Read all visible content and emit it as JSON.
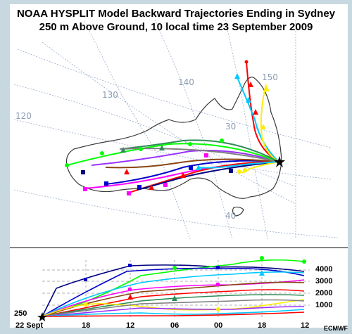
{
  "title": {
    "line1": "NOAA HYSPLIT Model Backward Trajectories Ending in Sydney",
    "line2": "250 m Above Ground, 10 local time 23 September 2009"
  },
  "map": {
    "longitude_labels": [
      "120",
      "130",
      "140",
      "150"
    ],
    "latitude_labels": [
      "30",
      "40"
    ],
    "end_point_label": "Sydney"
  },
  "height_panel": {
    "start_height_label": "250",
    "height_labels": [
      "4000",
      "3000",
      "2000",
      "1000"
    ]
  },
  "time_axis": {
    "labels": [
      "22 Sept",
      "18",
      "12",
      "06",
      "00",
      "18",
      "12"
    ]
  },
  "credit": "ECMWF",
  "colors": {
    "background": "#c8d8e0",
    "coastline": "#3a3a3a",
    "graticule": "#9aaccc",
    "trajectory_palette": [
      "#ff0000",
      "#00c8ff",
      "#ffee00",
      "#2e8b57",
      "#0000cc",
      "#ff00ff",
      "#8b4513",
      "#00ff00",
      "#808080",
      "#000080"
    ]
  }
}
